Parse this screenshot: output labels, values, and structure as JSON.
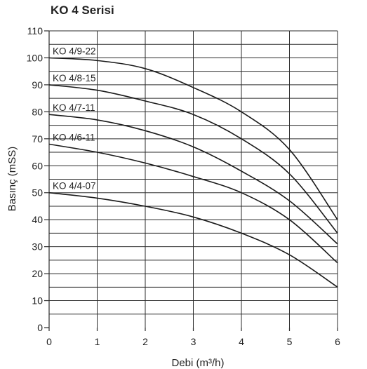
{
  "chart_data": {
    "type": "line",
    "title": "KO 4 Serisi",
    "xlabel": "Debi (m³/h)",
    "ylabel": "Basınç (mSS)",
    "xlim": [
      0,
      6
    ],
    "ylim": [
      0,
      110
    ],
    "xticks": [
      "0",
      "1",
      "2",
      "3",
      "4",
      "5",
      "6"
    ],
    "yticks": [
      "0",
      "10",
      "20",
      "30",
      "40",
      "50",
      "60",
      "70",
      "80",
      "90",
      "100",
      "110"
    ],
    "grid": true,
    "series": [
      {
        "name": "KO 4/9-22",
        "x": [
          0,
          1,
          2,
          3,
          4,
          5,
          6
        ],
        "y": [
          100,
          99,
          96,
          89,
          80,
          66,
          40
        ]
      },
      {
        "name": "KO 4/8-15",
        "x": [
          0,
          1,
          2,
          3,
          4,
          5,
          6
        ],
        "y": [
          90,
          88,
          84,
          79,
          70,
          57,
          35
        ]
      },
      {
        "name": "KO 4/7-11",
        "x": [
          0,
          1,
          2,
          3,
          4,
          5,
          6
        ],
        "y": [
          79,
          77,
          73,
          67,
          58,
          47,
          31
        ]
      },
      {
        "name": "KO 4/6-11",
        "x": [
          0,
          1,
          2,
          3,
          4,
          5,
          6
        ],
        "y": [
          68,
          65,
          61,
          56,
          50,
          40,
          24
        ]
      },
      {
        "name": "KO 4/4-07",
        "x": [
          0,
          1,
          2,
          3,
          4,
          5,
          6
        ],
        "y": [
          50,
          48,
          45,
          41,
          35,
          27,
          15
        ]
      }
    ]
  }
}
